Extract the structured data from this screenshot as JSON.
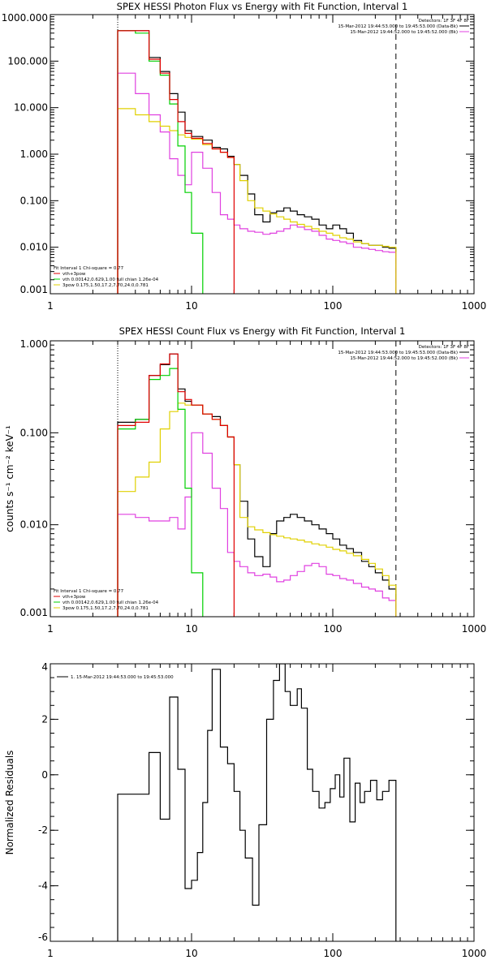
{
  "chart_data": [
    {
      "type": "line",
      "title": "SPEX HESSI Photon Flux vs Energy with Fit Function, Interval 1",
      "xscale": "log",
      "yscale": "log",
      "xlim": [
        1,
        1000
      ],
      "ylim": [
        0.001,
        1000
      ],
      "xticks": [
        {
          "v": 1,
          "label": "1"
        },
        {
          "v": 10,
          "label": "10"
        },
        {
          "v": 100,
          "label": "100"
        },
        {
          "v": 1000,
          "label": "1000"
        }
      ],
      "yticks": [
        {
          "v": 0.001,
          "label": "0.001"
        },
        {
          "v": 0.01,
          "label": "0.010"
        },
        {
          "v": 0.1,
          "label": "0.100"
        },
        {
          "v": 1,
          "label": "1.000"
        },
        {
          "v": 10,
          "label": "10.000"
        },
        {
          "v": 100,
          "label": "100.000"
        },
        {
          "v": 1000,
          "label": "1000.000"
        }
      ],
      "top_right_text": [
        {
          "text": "Detectors: 1F 3F 4F 8F",
          "color": "#000000"
        },
        {
          "text": "15-Mar-2012 19:44:53.000 to 19:45:53.000 (Data-Bk)",
          "color": "#000000",
          "line": "#000000"
        },
        {
          "text": "15-Mar-2012 19:44:52.000 to 19:45:52.000 (Bk)",
          "color": "#000000",
          "line": "#e040e0"
        }
      ],
      "fit_legend": [
        {
          "text": "Fit Interval 1    Chi-square = 0.77",
          "line": null
        },
        {
          "text": "vth+3pow",
          "line": "#e00000"
        },
        {
          "text": "vth 0.00142,0.629,1.00  full chian 1.26e-04",
          "line": "#00d000"
        },
        {
          "text": "3pow 0.175,1.50,17.2,7.70,24.0,0.781",
          "line": "#e0d000"
        }
      ],
      "vlines": [
        {
          "x": 3,
          "style": "dotted"
        },
        {
          "x": 280,
          "style": "dashed"
        }
      ],
      "series": [
        {
          "color": "#000000",
          "x": [
            3,
            4,
            5,
            6,
            7,
            8,
            9,
            10,
            12,
            14,
            16,
            18,
            20,
            22,
            25,
            28,
            32,
            36,
            40,
            45,
            50,
            56,
            63,
            71,
            80,
            90,
            100,
            112,
            125,
            140,
            160,
            180,
            200,
            225,
            250,
            280
          ],
          "y": [
            450,
            450,
            120,
            60,
            20,
            8,
            3.2,
            2.4,
            2,
            1.4,
            1.3,
            0.9,
            0.6,
            0.35,
            0.14,
            0.05,
            0.035,
            0.055,
            0.06,
            0.07,
            0.06,
            0.05,
            0.045,
            0.04,
            0.03,
            0.025,
            0.03,
            0.025,
            0.02,
            0.014,
            0.012,
            0.011,
            0.011,
            0.01,
            0.0095,
            0.009
          ]
        },
        {
          "color": "#e040e0",
          "x": [
            3,
            4,
            5,
            6,
            7,
            8,
            9,
            10,
            12,
            14,
            16,
            18,
            20,
            22,
            25,
            28,
            32,
            36,
            40,
            45,
            50,
            56,
            63,
            71,
            80,
            90,
            100,
            112,
            125,
            140,
            160,
            180,
            200,
            225,
            250,
            280
          ],
          "y": [
            55,
            20,
            7,
            3,
            0.8,
            0.35,
            0.22,
            1.1,
            0.5,
            0.15,
            0.05,
            0.04,
            0.03,
            0.025,
            0.022,
            0.021,
            0.019,
            0.02,
            0.022,
            0.025,
            0.03,
            0.027,
            0.024,
            0.022,
            0.018,
            0.015,
            0.014,
            0.013,
            0.012,
            0.01,
            0.0095,
            0.009,
            0.0085,
            0.008,
            0.0078,
            0.0075
          ]
        },
        {
          "color": "#e0d000",
          "x": [
            3,
            4,
            5,
            6,
            7,
            8,
            9,
            10,
            12,
            14,
            16,
            18,
            20,
            22,
            25,
            28,
            32,
            36,
            40,
            45,
            50,
            56,
            63,
            71,
            80,
            90,
            100,
            112,
            125,
            140,
            160,
            180,
            200,
            225,
            250,
            280
          ],
          "y": [
            9.5,
            7,
            5,
            4,
            3.2,
            2.6,
            2.3,
            2.1,
            1.6,
            1.3,
            1.1,
            0.85,
            0.6,
            0.27,
            0.1,
            0.07,
            0.06,
            0.052,
            0.045,
            0.04,
            0.035,
            0.031,
            0.028,
            0.025,
            0.022,
            0.02,
            0.018,
            0.016,
            0.015,
            0.013,
            0.012,
            0.011,
            0.011,
            0.0105,
            0.01,
            0.0095
          ]
        },
        {
          "color": "#00d000",
          "x": [
            3,
            4,
            5,
            6,
            7,
            8,
            9,
            10,
            12
          ],
          "y": [
            450,
            400,
            100,
            50,
            12,
            1.5,
            0.15,
            0.02,
            0.002
          ]
        },
        {
          "color": "#e00000",
          "x": [
            3,
            4,
            5,
            6,
            7,
            8,
            9,
            10,
            12,
            14,
            16,
            18,
            20
          ],
          "y": [
            450,
            450,
            110,
            55,
            15,
            5,
            2.8,
            2.2,
            1.7,
            1.3,
            1.1,
            0.85,
            0.6
          ]
        }
      ]
    },
    {
      "type": "line",
      "title": "SPEX HESSI Count Flux vs Energy with Fit Function, Interval 1",
      "ylabel": "counts s⁻¹ cm⁻² keV⁻¹",
      "xscale": "log",
      "yscale": "log",
      "xlim": [
        1,
        1000
      ],
      "ylim": [
        0.001,
        1
      ],
      "xticks": [
        {
          "v": 1,
          "label": "1"
        },
        {
          "v": 10,
          "label": "10"
        },
        {
          "v": 100,
          "label": "100"
        },
        {
          "v": 1000,
          "label": "1000"
        }
      ],
      "yticks": [
        {
          "v": 0.001,
          "label": "0.001"
        },
        {
          "v": 0.01,
          "label": "0.010"
        },
        {
          "v": 0.1,
          "label": "0.100"
        },
        {
          "v": 1,
          "label": "1.000"
        }
      ],
      "top_right_text": [
        {
          "text": "Detectors: 1F 3F 4F 8F",
          "color": "#000000"
        },
        {
          "text": "15-Mar-2012 19:44:53.000 to 19:45:53.000 (Data-Bk)",
          "color": "#000000",
          "line": "#000000"
        },
        {
          "text": "15-Mar-2012 19:44:52.000 to 19:45:52.000 (Bk)",
          "color": "#000000",
          "line": "#e040e0"
        }
      ],
      "fit_legend": [
        {
          "text": "Fit Interval 1    Chi-square = 0.77",
          "line": null
        },
        {
          "text": "vth+3pow",
          "line": "#e00000"
        },
        {
          "text": "vth 0.00142,0.629,1.00  full chian 1.26e-04",
          "line": "#00d000"
        },
        {
          "text": "3pow 0.175,1.50,17.2,7.70,24.0,0.781",
          "line": "#e0d000"
        }
      ],
      "vlines": [
        {
          "x": 3,
          "style": "dotted"
        },
        {
          "x": 280,
          "style": "dashed"
        }
      ],
      "series": [
        {
          "color": "#000000",
          "x": [
            3,
            4,
            5,
            6,
            7,
            8,
            9,
            10,
            12,
            14,
            16,
            18,
            20,
            22,
            25,
            28,
            32,
            36,
            40,
            45,
            50,
            56,
            63,
            71,
            80,
            90,
            100,
            112,
            125,
            140,
            160,
            180,
            200,
            225,
            250,
            280
          ],
          "y": [
            0.13,
            0.14,
            0.42,
            0.55,
            0.72,
            0.3,
            0.22,
            0.2,
            0.16,
            0.15,
            0.12,
            0.09,
            0.045,
            0.018,
            0.007,
            0.0045,
            0.0035,
            0.008,
            0.011,
            0.012,
            0.013,
            0.012,
            0.011,
            0.01,
            0.009,
            0.008,
            0.007,
            0.006,
            0.0055,
            0.005,
            0.004,
            0.0035,
            0.003,
            0.0025,
            0.002,
            0.0016
          ]
        },
        {
          "color": "#e040e0",
          "x": [
            3,
            4,
            5,
            6,
            7,
            8,
            9,
            10,
            12,
            14,
            16,
            18,
            20,
            22,
            25,
            28,
            32,
            36,
            40,
            45,
            50,
            56,
            63,
            71,
            80,
            90,
            100,
            112,
            125,
            140,
            160,
            180,
            200,
            225,
            250,
            280
          ],
          "y": [
            0.013,
            0.012,
            0.011,
            0.011,
            0.012,
            0.009,
            0.02,
            0.1,
            0.06,
            0.025,
            0.015,
            0.005,
            0.004,
            0.0035,
            0.003,
            0.0028,
            0.0029,
            0.0027,
            0.0024,
            0.0025,
            0.0028,
            0.0031,
            0.0036,
            0.0038,
            0.0035,
            0.0029,
            0.0028,
            0.0026,
            0.0025,
            0.0023,
            0.0021,
            0.002,
            0.0019,
            0.0016,
            0.0015,
            0.0014
          ]
        },
        {
          "color": "#e0d000",
          "x": [
            3,
            4,
            5,
            6,
            7,
            8,
            9,
            10,
            12,
            14,
            16,
            18,
            20,
            22,
            25,
            28,
            32,
            36,
            40,
            45,
            50,
            56,
            63,
            71,
            80,
            90,
            100,
            112,
            125,
            140,
            160,
            180,
            200,
            225,
            250,
            280
          ],
          "y": [
            0.023,
            0.033,
            0.048,
            0.11,
            0.17,
            0.21,
            0.2,
            0.2,
            0.16,
            0.14,
            0.12,
            0.09,
            0.045,
            0.012,
            0.0095,
            0.0088,
            0.0082,
            0.0078,
            0.0075,
            0.0072,
            0.007,
            0.0068,
            0.0065,
            0.0062,
            0.006,
            0.0057,
            0.0054,
            0.0052,
            0.0049,
            0.0046,
            0.0042,
            0.0038,
            0.0033,
            0.0028,
            0.0022,
            0.0018
          ]
        },
        {
          "color": "#00d000",
          "x": [
            3,
            4,
            5,
            6,
            7,
            8,
            9,
            10,
            12
          ],
          "y": [
            0.11,
            0.14,
            0.38,
            0.42,
            0.5,
            0.18,
            0.025,
            0.003,
            0.001
          ]
        },
        {
          "color": "#e00000",
          "x": [
            3,
            4,
            5,
            6,
            7,
            8,
            9,
            10,
            12,
            14,
            16,
            18,
            20
          ],
          "y": [
            0.12,
            0.13,
            0.42,
            0.56,
            0.72,
            0.28,
            0.23,
            0.2,
            0.16,
            0.14,
            0.12,
            0.09,
            0.045
          ]
        }
      ]
    },
    {
      "type": "line",
      "ylabel": "Normalized Residuals",
      "xscale": "log",
      "yscale": "linear",
      "xlim": [
        1,
        1000
      ],
      "ylim": [
        -6,
        4
      ],
      "xticks": [
        {
          "v": 1,
          "label": "1"
        },
        {
          "v": 10,
          "label": "10"
        },
        {
          "v": 100,
          "label": "100"
        },
        {
          "v": 1000,
          "label": "1000"
        }
      ],
      "yticks": [
        {
          "v": -6,
          "label": "-6"
        },
        {
          "v": -4,
          "label": "-4"
        },
        {
          "v": -2,
          "label": "-2"
        },
        {
          "v": 0,
          "label": "0"
        },
        {
          "v": 2,
          "label": "2"
        },
        {
          "v": 4,
          "label": "4"
        }
      ],
      "legend": [
        {
          "text": "1. 15-Mar-2012 19:44:53.000 to 19:45:53.000",
          "line": "#000000"
        }
      ],
      "series": [
        {
          "color": "#000000",
          "x": [
            3,
            4,
            5,
            6,
            7,
            8,
            9,
            10,
            11,
            12,
            13,
            14,
            16,
            18,
            20,
            22,
            24,
            27,
            30,
            34,
            38,
            42,
            46,
            50,
            56,
            60,
            66,
            72,
            80,
            88,
            96,
            104,
            112,
            120,
            132,
            144,
            156,
            168,
            185,
            205,
            225,
            250,
            280
          ],
          "y": [
            -0.7,
            -0.7,
            0.8,
            -1.6,
            2.8,
            0.2,
            -4.1,
            -3.8,
            -2.8,
            -1.0,
            1.6,
            3.8,
            1.0,
            0.4,
            -0.6,
            -2.0,
            -3.0,
            -4.7,
            -1.8,
            2.0,
            3.4,
            4.0,
            3.0,
            2.5,
            3.1,
            2.4,
            0.2,
            -0.6,
            -1.2,
            -1.0,
            -0.5,
            0.0,
            -0.8,
            0.6,
            -1.7,
            -0.3,
            -1.0,
            -0.6,
            -0.2,
            -0.9,
            -0.6,
            -0.2,
            -6.0
          ]
        }
      ]
    }
  ]
}
